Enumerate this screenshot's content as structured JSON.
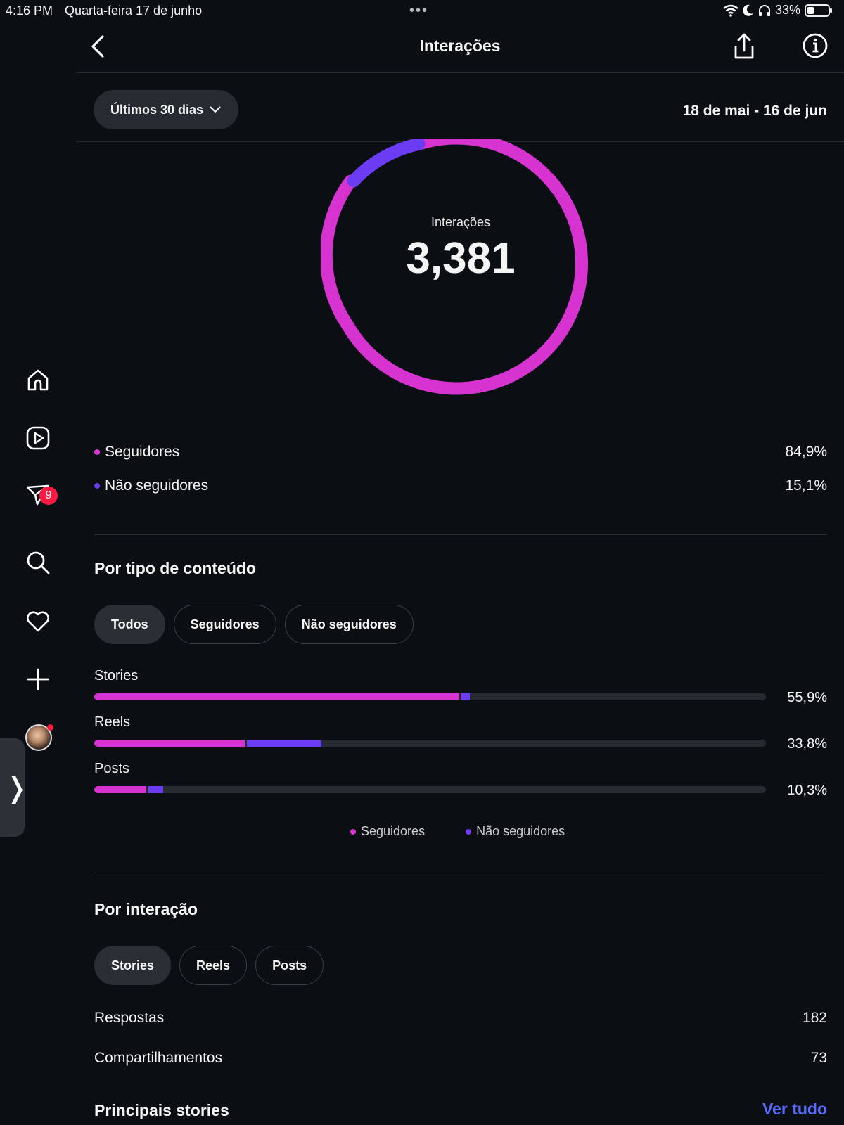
{
  "status_bar": {
    "time": "4:16 PM",
    "date": "Quarta-feira 17 de junho",
    "battery": "33%"
  },
  "rail": {
    "messages_badge": "9"
  },
  "header": {
    "title": "Interações"
  },
  "filter": {
    "range_label": "Últimos 30 dias",
    "dates": "18 de mai - 16 de jun"
  },
  "summary": {
    "label": "Interações",
    "value": "3,381",
    "followers_label": "Seguidores",
    "followers_pct": "84,9%",
    "non_followers_label": "Não seguidores",
    "non_followers_pct": "15,1%"
  },
  "content_type": {
    "title": "Por tipo de conteúdo",
    "tabs": [
      "Todos",
      "Seguidores",
      "Não seguidores"
    ],
    "legend_followers": "Seguidores",
    "legend_non_followers": "Não seguidores"
  },
  "chart_data": {
    "type": "bar",
    "orientation": "horizontal",
    "stacked": true,
    "categories": [
      "Stories",
      "Reels",
      "Posts"
    ],
    "totals_pct_labels": [
      "55,9%",
      "33,8%",
      "10,3%"
    ],
    "series": [
      {
        "name": "Seguidores",
        "values": [
          54.3,
          22.4,
          7.8
        ],
        "color": "#d633d0"
      },
      {
        "name": "Não seguidores",
        "values": [
          1.6,
          11.4,
          2.5
        ],
        "color": "#6c3cf5"
      }
    ],
    "xlim": [
      0,
      100
    ]
  },
  "interaction": {
    "title": "Por interação",
    "tabs": [
      "Stories",
      "Reels",
      "Posts"
    ],
    "rows": [
      {
        "label": "Respostas",
        "value": "182"
      },
      {
        "label": "Compartilhamentos",
        "value": "73"
      }
    ]
  },
  "top_stories": {
    "title": "Principais stories",
    "see_all": "Ver tudo"
  },
  "colors": {
    "followers": "#d633d0",
    "non_followers": "#6c3cf5",
    "link": "#5a6bff",
    "badge": "#ff1a43"
  }
}
